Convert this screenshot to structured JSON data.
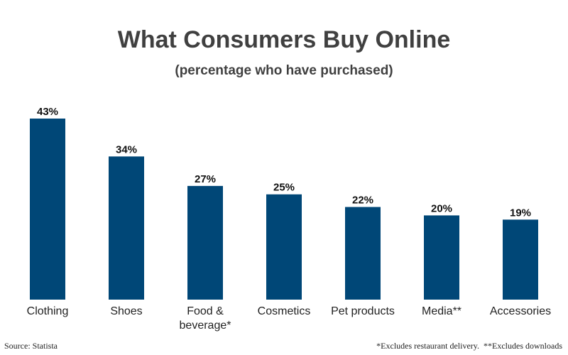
{
  "chart_data": {
    "type": "bar",
    "title": "What Consumers Buy Online",
    "subtitle": "(percentage who have purchased)",
    "categories": [
      [
        "Clothing"
      ],
      [
        "Shoes"
      ],
      [
        "Food &",
        "beverage*"
      ],
      [
        "Cosmetics"
      ],
      [
        "Pet products"
      ],
      [
        "Media**"
      ],
      [
        "Accessories"
      ]
    ],
    "values": [
      43,
      34,
      27,
      25,
      22,
      20,
      19
    ],
    "value_labels": [
      "43%",
      "34%",
      "27%",
      "25%",
      "22%",
      "20%",
      "19%"
    ],
    "ylim": [
      0,
      43
    ],
    "grid": false,
    "legend": "none",
    "bar_color": "#004777"
  },
  "footer": {
    "source": "Source: Statista",
    "notes": "*Excludes restaurant delivery.  **Excludes downloads"
  }
}
